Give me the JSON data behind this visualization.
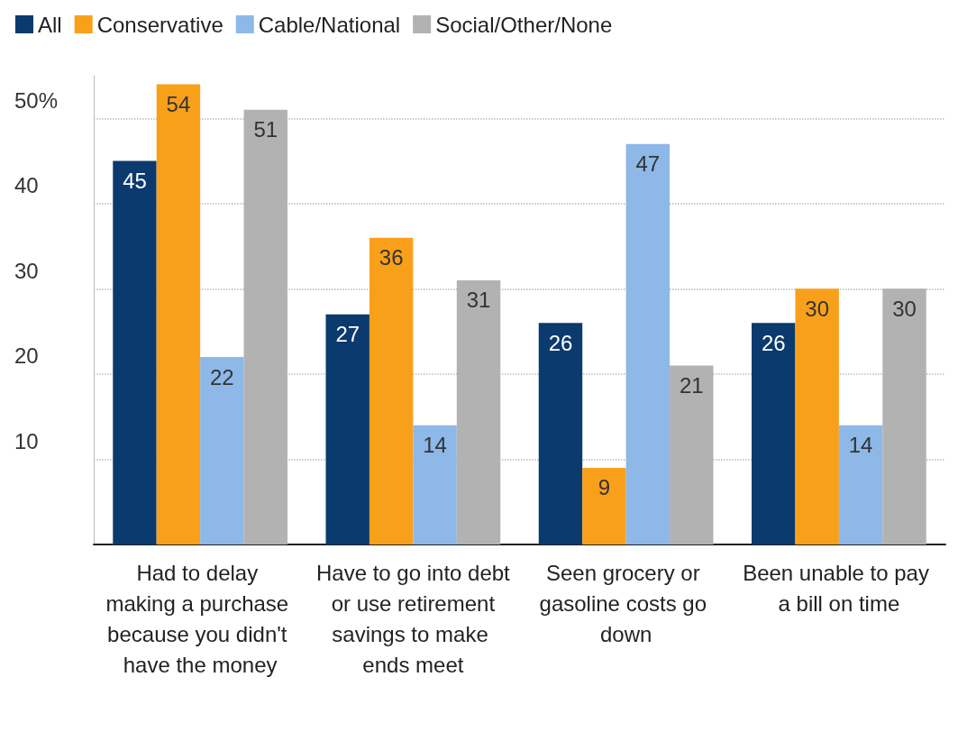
{
  "chart_data": {
    "type": "bar",
    "categories": [
      "Had to delay making a purchase because you didn't have the money",
      "Have to go into debt or use retirement savings to make ends meet",
      "Seen grocery or gasoline costs go down",
      "Been unable to pay a bill on time"
    ],
    "series": [
      {
        "name": "All",
        "color": "#0b3a6e",
        "values": [
          45,
          27,
          26,
          26
        ]
      },
      {
        "name": "Conservative",
        "color": "#f9a01b",
        "values": [
          54,
          36,
          9,
          30
        ]
      },
      {
        "name": "Cable/National",
        "color": "#8db8e8",
        "values": [
          22,
          14,
          47,
          14
        ]
      },
      {
        "name": "Social/Other/None",
        "color": "#b2b2b2",
        "values": [
          51,
          31,
          21,
          30
        ]
      }
    ],
    "ylim": [
      0,
      55
    ],
    "yticks": [
      10,
      20,
      30,
      40,
      {
        "value": 50,
        "label": "50%"
      }
    ],
    "grid": "y",
    "legend": "top left",
    "data_labels": true
  }
}
